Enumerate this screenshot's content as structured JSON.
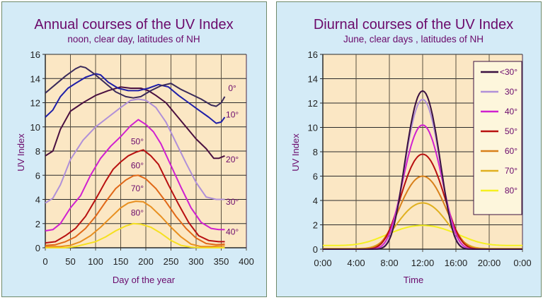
{
  "chart_data": [
    {
      "type": "line",
      "title": "Annual courses of the UV Index",
      "subtitle": "noon, clear day, latitudes of NH",
      "xlabel": "Day of the year",
      "ylabel": "UV Index",
      "xlim": [
        0,
        400
      ],
      "ylim": [
        0,
        16
      ],
      "xticks": [
        0,
        50,
        100,
        150,
        200,
        250,
        300,
        350,
        400
      ],
      "yticks": [
        0,
        2,
        4,
        6,
        8,
        10,
        12,
        14,
        16
      ],
      "grid": true,
      "legend": "inline-labels",
      "series": [
        {
          "name": "0°",
          "color": "#3a2a5a",
          "label_pos": [
            372,
            13.2
          ],
          "x": [
            0,
            20,
            40,
            60,
            70,
            80,
            100,
            120,
            140,
            160,
            175,
            190,
            210,
            230,
            250,
            270,
            290,
            310,
            330,
            340,
            350,
            357
          ],
          "y": [
            12.8,
            13.5,
            14.2,
            14.8,
            15.0,
            14.9,
            14.3,
            13.6,
            12.9,
            12.5,
            12.4,
            12.5,
            13.0,
            13.4,
            13.6,
            13.1,
            12.7,
            12.3,
            11.8,
            11.7,
            12.0,
            12.5
          ]
        },
        {
          "name": "10°",
          "color": "#1f1fa8",
          "label_pos": [
            372,
            11.0
          ],
          "x": [
            0,
            15,
            30,
            45,
            60,
            80,
            100,
            110,
            125,
            145,
            165,
            185,
            205,
            225,
            245,
            265,
            285,
            305,
            325,
            340,
            350,
            357
          ],
          "y": [
            10.8,
            11.4,
            12.5,
            13.2,
            13.6,
            14.1,
            14.4,
            14.3,
            13.7,
            13.2,
            13.0,
            13.0,
            13.2,
            13.5,
            13.3,
            12.6,
            12.0,
            11.4,
            10.8,
            10.3,
            10.4,
            10.8
          ]
        },
        {
          "name": "20°",
          "color": "#4a1040",
          "label_pos": [
            372,
            7.3
          ],
          "x": [
            0,
            15,
            30,
            50,
            75,
            100,
            125,
            150,
            170,
            190,
            205,
            220,
            240,
            260,
            280,
            300,
            320,
            335,
            345,
            357
          ],
          "y": [
            7.6,
            8.0,
            9.8,
            11.3,
            12.0,
            12.6,
            13.0,
            13.3,
            13.2,
            13.2,
            13.0,
            12.6,
            12.0,
            11.0,
            10.0,
            9.0,
            8.2,
            7.4,
            7.4,
            7.6
          ]
        },
        {
          "name": "30°",
          "color": "#b090d8",
          "label_pos": [
            372,
            3.8
          ],
          "x": [
            0,
            15,
            30,
            50,
            75,
            100,
            125,
            150,
            170,
            185,
            200,
            220,
            240,
            260,
            280,
            300,
            320,
            340,
            357
          ],
          "y": [
            3.7,
            4.1,
            5.2,
            7.3,
            8.9,
            10.0,
            10.8,
            11.6,
            12.2,
            12.3,
            12.2,
            11.6,
            10.4,
            8.7,
            7.0,
            5.4,
            4.2,
            4.0,
            4.0
          ]
        },
        {
          "name": "40°",
          "color": "#d020d0",
          "label_pos": [
            372,
            1.3
          ],
          "x": [
            0,
            15,
            30,
            50,
            70,
            90,
            110,
            130,
            150,
            170,
            185,
            200,
            215,
            230,
            250,
            270,
            290,
            310,
            330,
            345,
            357
          ],
          "y": [
            1.4,
            1.5,
            2.0,
            3.3,
            4.3,
            6.0,
            7.4,
            8.4,
            9.2,
            10.1,
            10.6,
            10.2,
            9.6,
            8.6,
            6.8,
            5.0,
            3.3,
            2.1,
            1.6,
            1.5,
            1.5
          ]
        },
        {
          "name": "50°",
          "color": "#b81010",
          "label_pos": [
            183,
            8.8
          ],
          "x": [
            0,
            20,
            40,
            60,
            80,
            100,
            120,
            135,
            150,
            165,
            180,
            195,
            210,
            225,
            245,
            265,
            285,
            305,
            325,
            345,
            357
          ],
          "y": [
            0.4,
            0.5,
            1.0,
            1.6,
            2.6,
            4.0,
            5.5,
            6.5,
            7.1,
            7.6,
            7.9,
            8.1,
            7.6,
            6.9,
            5.2,
            3.6,
            2.1,
            1.0,
            0.6,
            0.5,
            0.5
          ]
        },
        {
          "name": "60°",
          "color": "#e06818",
          "label_pos": [
            183,
            6.8
          ],
          "x": [
            0,
            20,
            40,
            60,
            80,
            100,
            120,
            140,
            160,
            175,
            185,
            200,
            220,
            240,
            260,
            280,
            300,
            320,
            340,
            357
          ],
          "y": [
            0.2,
            0.25,
            0.5,
            0.9,
            1.6,
            2.6,
            3.8,
            4.9,
            5.6,
            5.95,
            6.0,
            5.7,
            4.9,
            3.8,
            2.6,
            1.6,
            0.8,
            0.35,
            0.25,
            0.3
          ]
        },
        {
          "name": "70°",
          "color": "#e89020",
          "label_pos": [
            183,
            4.9
          ],
          "x": [
            0,
            30,
            50,
            70,
            90,
            110,
            130,
            150,
            165,
            180,
            195,
            210,
            230,
            250,
            270,
            290,
            310,
            330,
            357
          ],
          "y": [
            0.1,
            0.1,
            0.2,
            0.5,
            1.0,
            1.7,
            2.5,
            3.3,
            3.7,
            3.85,
            3.8,
            3.4,
            2.6,
            1.7,
            0.9,
            0.3,
            0.1,
            0.1,
            0.15
          ]
        },
        {
          "name": "80°",
          "color": "#f5e020",
          "label_pos": [
            183,
            2.9
          ],
          "x": [
            0,
            40,
            60,
            80,
            100,
            120,
            140,
            160,
            175,
            190,
            210,
            230,
            250,
            270,
            290,
            310,
            357
          ],
          "y": [
            0.0,
            0.0,
            0.1,
            0.3,
            0.5,
            0.9,
            1.4,
            1.8,
            2.0,
            1.95,
            1.7,
            1.2,
            0.6,
            0.2,
            0.05,
            0.0,
            0.0
          ]
        }
      ]
    },
    {
      "type": "line",
      "title": "Diurnal courses of the UV Index",
      "subtitle": "June, clear days , latitudes of NH",
      "xlabel": "Time",
      "ylabel": "UV Index",
      "xlim": [
        0,
        24
      ],
      "ylim": [
        0,
        16
      ],
      "xticks": [
        0,
        4,
        8,
        12,
        16,
        20,
        24
      ],
      "xticklabels": [
        "0:00",
        "4:00",
        "8:00",
        "12:00",
        "16:00",
        "20:00",
        "0:00"
      ],
      "yticks": [
        0,
        2,
        4,
        6,
        8,
        10,
        12,
        14,
        16
      ],
      "grid": true,
      "legend": "top-right",
      "series": [
        {
          "name": "<30°",
          "color": "#3a1040",
          "peak": 13.0,
          "width": 2.1,
          "base": 0.0
        },
        {
          "name": "30°",
          "color": "#b090d8",
          "peak": 12.3,
          "width": 2.15,
          "base": 0.0
        },
        {
          "name": "40°",
          "color": "#d020d0",
          "peak": 10.2,
          "width": 2.35,
          "base": 0.0
        },
        {
          "name": "50°",
          "color": "#b81010",
          "peak": 7.8,
          "width": 2.6,
          "base": 0.0
        },
        {
          "name": "60°",
          "color": "#d8801a",
          "peak": 6.0,
          "width": 2.8,
          "base": 0.0
        },
        {
          "name": "70°",
          "color": "#e0b020",
          "peak": 3.8,
          "width": 3.0,
          "base": 0.05
        },
        {
          "name": "80°",
          "color": "#f5f020",
          "peak": 1.95,
          "width": 4.2,
          "base": 0.3
        }
      ]
    }
  ]
}
